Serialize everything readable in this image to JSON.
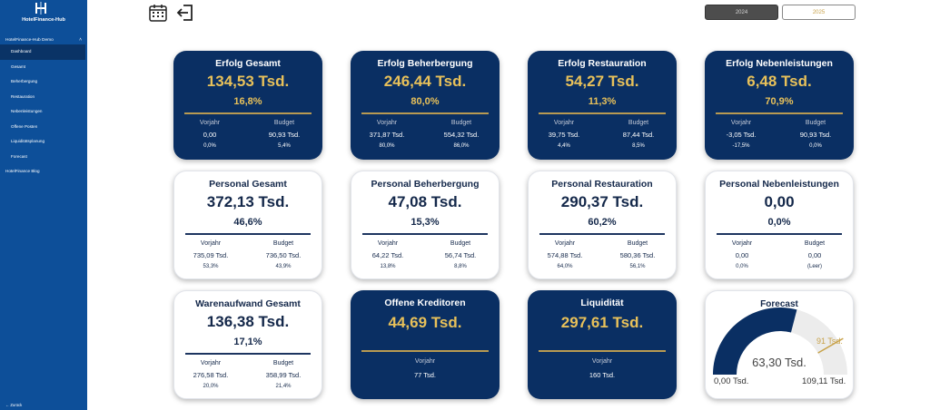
{
  "sidebar": {
    "app_name": "HotelFinance-Hub",
    "group_label": "HotelFinance-Hub Demo",
    "items": [
      "Dashboard",
      "Gesamt",
      "Beherbergung",
      "Restauration",
      "Nebenleistungen",
      "Offene Posten",
      "Liquiditätsplanung",
      "Forecast"
    ],
    "blog": "HotelFinance Blog",
    "back": "Zurück"
  },
  "toolbar": {
    "icon1": "calendar-icon",
    "icon2": "exit-icon"
  },
  "years": {
    "active": "2024",
    "inactive": "2025"
  },
  "colors": {
    "sidebar": "#0d4f99",
    "dark_card": "#0a2f63",
    "gold": "#e8c15a",
    "navy_text": "#14284a"
  },
  "labels": {
    "vorjahr": "Vorjahr",
    "budget": "Budget"
  },
  "cards": [
    {
      "title": "Erfolg Gesamt",
      "value": "134,53 Tsd.",
      "pct": "16,8%",
      "vj_val": "0,00",
      "vj_pct": "0,0%",
      "bg_val": "90,93 Tsd.",
      "bg_pct": "5,4%"
    },
    {
      "title": "Erfolg Beherbergung",
      "value": "246,44 Tsd.",
      "pct": "80,0%",
      "vj_val": "371,87 Tsd.",
      "vj_pct": "80,0%",
      "bg_val": "554,32 Tsd.",
      "bg_pct": "86,0%"
    },
    {
      "title": "Erfolg Restauration",
      "value": "54,27 Tsd.",
      "pct": "11,3%",
      "vj_val": "39,75 Tsd.",
      "vj_pct": "4,4%",
      "bg_val": "87,44 Tsd.",
      "bg_pct": "8,5%"
    },
    {
      "title": "Erfolg Nebenleistungen",
      "value": "6,48 Tsd.",
      "pct": "70,9%",
      "vj_val": "-3,05 Tsd.",
      "vj_pct": "-17,5%",
      "bg_val": "90,93 Tsd.",
      "bg_pct": "0,0%"
    },
    {
      "title": "Personal Gesamt",
      "value": "372,13 Tsd.",
      "pct": "46,6%",
      "vj_val": "735,09 Tsd.",
      "vj_pct": "53,3%",
      "bg_val": "736,50 Tsd.",
      "bg_pct": "43,9%"
    },
    {
      "title": "Personal Beherbergung",
      "value": "47,08 Tsd.",
      "pct": "15,3%",
      "vj_val": "64,22 Tsd.",
      "vj_pct": "13,8%",
      "bg_val": "56,74 Tsd.",
      "bg_pct": "8,8%"
    },
    {
      "title": "Personal Restauration",
      "value": "290,37 Tsd.",
      "pct": "60,2%",
      "vj_val": "574,88 Tsd.",
      "vj_pct": "64,0%",
      "bg_val": "580,36 Tsd.",
      "bg_pct": "56,1%"
    },
    {
      "title": "Personal Nebenleistungen",
      "value": "0,00",
      "pct": "0,0%",
      "vj_val": "0,00",
      "vj_pct": "0,0%",
      "bg_val": "0,00",
      "bg_pct": "(Leer)"
    },
    {
      "title": "Warenaufwand Gesamt",
      "value": "136,38 Tsd.",
      "pct": "17,1%",
      "vj_val": "276,58 Tsd.",
      "vj_pct": "20,0%",
      "bg_val": "358,99 Tsd.",
      "bg_pct": "21,4%"
    }
  ],
  "simple_cards": [
    {
      "title": "Offene Kreditoren",
      "value": "44,69 Tsd.",
      "vj_val": "77 Tsd."
    },
    {
      "title": "Liquidität",
      "value": "297,61 Tsd.",
      "vj_val": "160 Tsd."
    }
  ],
  "forecast": {
    "title": "Forecast",
    "value_label": "63,30 Tsd.",
    "min_label": "0,00 Tsd.",
    "max_label": "109,11 Tsd.",
    "target_label": "91 Tsd.",
    "value": 63.3,
    "min": 0,
    "max": 109.11,
    "target": 91
  }
}
